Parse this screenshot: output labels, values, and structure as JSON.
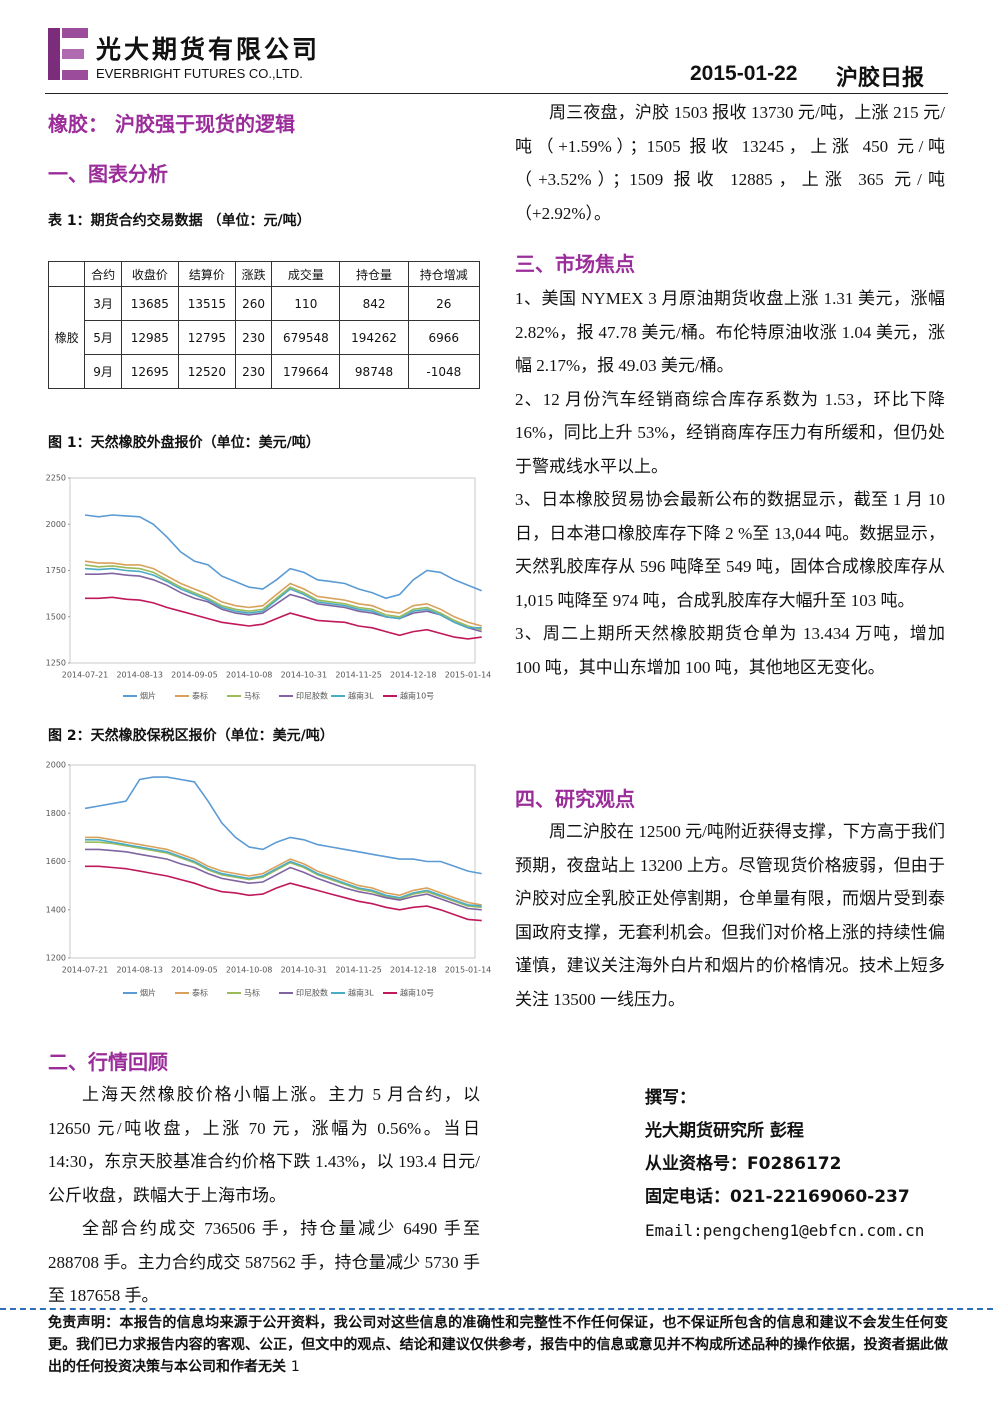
{
  "header": {
    "company": "光大期货有限公司",
    "company_en": "EVERBRIGHT FUTURES CO.,LTD.",
    "date": "2015-01-22",
    "report": "沪胶日报"
  },
  "title": "橡胶： 沪胶强于现货的逻辑",
  "section1": {
    "heading": "一、图表分析",
    "table_caption": "表 1：期货合约交易数据 （单位：元/吨）"
  },
  "table": {
    "header": [
      "合约",
      "收盘价",
      "结算价",
      "涨跌",
      "成交量",
      "持仓量",
      "持仓增减"
    ],
    "group": "橡胶",
    "rows": [
      [
        "3月",
        13685,
        13515,
        260,
        110,
        842,
        26
      ],
      [
        "5月",
        12985,
        12795,
        230,
        679548,
        194262,
        6966
      ],
      [
        "9月",
        12695,
        12520,
        230,
        179664,
        98748,
        -1048
      ]
    ]
  },
  "chart_data": [
    {
      "type": "line",
      "title": "图 1：天然橡胶外盘报价（单位：美元/吨）",
      "grid": false,
      "legend": "bottom",
      "categories": [
        "2014-07-21",
        null,
        null,
        null,
        "2014-08-13",
        null,
        null,
        null,
        "2014-09-05",
        null,
        null,
        null,
        "2014-10-08",
        null,
        null,
        null,
        "2014-10-31",
        null,
        null,
        null,
        "2014-11-25",
        null,
        null,
        null,
        "2014-12-18",
        null,
        null,
        null,
        "2015-01-14",
        null
      ],
      "ylim": [
        1250,
        2250
      ],
      "yticks": [
        1250,
        1500,
        1750,
        2000,
        2250
      ],
      "series": [
        {
          "name": "烟片",
          "color": "#5b9bd5",
          "values": [
            2050,
            2040,
            2050,
            2045,
            2040,
            2000,
            1930,
            1850,
            1800,
            1780,
            1720,
            1690,
            1660,
            1650,
            1700,
            1760,
            1740,
            1700,
            1690,
            1680,
            1650,
            1630,
            1600,
            1620,
            1700,
            1750,
            1740,
            1700,
            1670,
            1640
          ]
        },
        {
          "name": "泰标",
          "color": "#d9a05b",
          "values": [
            1800,
            1790,
            1790,
            1780,
            1780,
            1760,
            1720,
            1680,
            1650,
            1620,
            1580,
            1560,
            1550,
            1560,
            1620,
            1680,
            1650,
            1610,
            1600,
            1590,
            1570,
            1560,
            1530,
            1520,
            1560,
            1570,
            1540,
            1500,
            1470,
            1450
          ]
        },
        {
          "name": "马标",
          "color": "#9bbb59",
          "values": [
            1780,
            1770,
            1775,
            1765,
            1760,
            1740,
            1700,
            1660,
            1630,
            1600,
            1560,
            1540,
            1530,
            1540,
            1600,
            1660,
            1630,
            1590,
            1580,
            1570,
            1550,
            1540,
            1510,
            1500,
            1540,
            1550,
            1520,
            1480,
            1450,
            1430
          ]
        },
        {
          "name": "印尼胶数",
          "color": "#8064a2",
          "values": [
            1730,
            1730,
            1735,
            1725,
            1720,
            1700,
            1670,
            1630,
            1600,
            1580,
            1540,
            1520,
            1510,
            1520,
            1570,
            1620,
            1600,
            1570,
            1560,
            1550,
            1530,
            1520,
            1500,
            1490,
            1520,
            1530,
            1510,
            1470,
            1440,
            1420
          ]
        },
        {
          "name": "越南3L",
          "color": "#4bacc6",
          "values": [
            1760,
            1755,
            1760,
            1750,
            1745,
            1725,
            1690,
            1650,
            1620,
            1590,
            1550,
            1530,
            1520,
            1530,
            1590,
            1650,
            1620,
            1580,
            1570,
            1560,
            1540,
            1530,
            1500,
            1490,
            1530,
            1540,
            1510,
            1470,
            1440,
            1440
          ]
        },
        {
          "name": "越南10号",
          "color": "#c0185a",
          "values": [
            1600,
            1600,
            1605,
            1595,
            1590,
            1575,
            1550,
            1530,
            1510,
            1490,
            1470,
            1460,
            1450,
            1460,
            1490,
            1520,
            1500,
            1480,
            1475,
            1470,
            1450,
            1440,
            1420,
            1400,
            1420,
            1430,
            1410,
            1390,
            1380,
            1390
          ]
        }
      ]
    },
    {
      "type": "line",
      "title": "图 2：天然橡胶保税区报价（单位：美元/吨）",
      "grid": false,
      "legend": "bottom",
      "categories": [
        "2014-07-21",
        null,
        null,
        null,
        "2014-08-13",
        null,
        null,
        null,
        "2014-09-05",
        null,
        null,
        null,
        "2014-10-08",
        null,
        null,
        null,
        "2014-10-31",
        null,
        null,
        null,
        "2014-11-25",
        null,
        null,
        null,
        "2014-12-18",
        null,
        null,
        null,
        "2015-01-14",
        null
      ],
      "ylim": [
        1200,
        2000
      ],
      "yticks": [
        1200,
        1400,
        1600,
        1800,
        2000
      ],
      "series": [
        {
          "name": "烟片",
          "color": "#5b9bd5",
          "values": [
            1820,
            1830,
            1840,
            1850,
            1940,
            1950,
            1950,
            1940,
            1930,
            1850,
            1760,
            1700,
            1660,
            1650,
            1680,
            1700,
            1690,
            1670,
            1660,
            1650,
            1640,
            1630,
            1620,
            1610,
            1610,
            1600,
            1600,
            1580,
            1560,
            1550
          ]
        },
        {
          "name": "泰标",
          "color": "#d9a05b",
          "values": [
            1700,
            1700,
            1690,
            1680,
            1670,
            1660,
            1650,
            1630,
            1610,
            1580,
            1560,
            1550,
            1540,
            1550,
            1580,
            1610,
            1590,
            1560,
            1540,
            1520,
            1500,
            1490,
            1470,
            1460,
            1480,
            1490,
            1470,
            1450,
            1430,
            1420
          ]
        },
        {
          "name": "马标",
          "color": "#9bbb59",
          "values": [
            1680,
            1680,
            1675,
            1665,
            1655,
            1645,
            1635,
            1615,
            1595,
            1565,
            1545,
            1535,
            1525,
            1535,
            1565,
            1595,
            1575,
            1545,
            1525,
            1505,
            1485,
            1475,
            1455,
            1445,
            1465,
            1475,
            1455,
            1435,
            1415,
            1410
          ]
        },
        {
          "name": "印尼胶数",
          "color": "#8064a2",
          "values": [
            1650,
            1650,
            1645,
            1640,
            1630,
            1620,
            1610,
            1590,
            1575,
            1550,
            1530,
            1520,
            1510,
            1515,
            1545,
            1575,
            1555,
            1530,
            1510,
            1490,
            1475,
            1465,
            1450,
            1440,
            1455,
            1465,
            1445,
            1425,
            1405,
            1400
          ]
        },
        {
          "name": "越南3L",
          "color": "#4bacc6",
          "values": [
            1690,
            1690,
            1680,
            1670,
            1660,
            1650,
            1640,
            1620,
            1600,
            1570,
            1550,
            1540,
            1530,
            1540,
            1570,
            1600,
            1580,
            1550,
            1530,
            1510,
            1490,
            1480,
            1460,
            1450,
            1470,
            1480,
            1460,
            1440,
            1420,
            1415
          ]
        },
        {
          "name": "越南10号",
          "color": "#c0185a",
          "values": [
            1580,
            1580,
            1575,
            1570,
            1560,
            1550,
            1540,
            1525,
            1510,
            1490,
            1475,
            1470,
            1460,
            1465,
            1490,
            1510,
            1495,
            1480,
            1465,
            1450,
            1435,
            1425,
            1410,
            1400,
            1410,
            1415,
            1400,
            1380,
            1360,
            1355
          ]
        }
      ]
    }
  ],
  "section2": {
    "heading": "二、行情回顾",
    "paragraphs": [
      "上海天然橡胶价格小幅上涨。主力 5 月合约，以 12650 元/吨收盘，上涨 70 元，涨幅为 0.56%。当日 14:30，东京天胶基准合约价格下跌 1.43%，以 193.4 日元/公斤收盘，跌幅大于上海市场。",
      "全部合约成交 736506 手，持仓量减少 6490 手至 288708 手。主力合约成交 587562 手，持仓量减少 5730 手至 187658 手。"
    ]
  },
  "night_session": "周三夜盘，沪胶 1503 报收 13730 元/吨，上涨 215 元/吨（+1.59%）；1505 报收 13245，上涨 450 元/吨（+3.52%）；1509 报收 12885，上涨 365 元/吨（+2.92%）。",
  "section3": {
    "heading": "三、市场焦点",
    "items": [
      "1、美国 NYMEX 3 月原油期货收盘上涨 1.31 美元，涨幅 2.82%，报 47.78 美元/桶。布伦特原油收涨 1.04 美元，涨幅 2.17%，报 49.03 美元/桶。",
      "2、12 月份汽车经销商综合库存系数为 1.53，环比下降 16%，同比上升 53%，经销商库存压力有所缓和，但仍处于警戒线水平以上。",
      "3、日本橡胶贸易协会最新公布的数据显示，截至 1 月 10 日，日本港口橡胶库存下降 2 %至 13,044 吨。数据显示，天然乳胶库存从 596 吨降至 549 吨，固体合成橡胶库存从 1,015 吨降至 974 吨，合成乳胶库存大幅升至 103 吨。",
      "3、周二上期所天然橡胶期货仓单为 13.434 万吨，增加 100 吨，其中山东增加 100 吨，其他地区无变化。"
    ]
  },
  "section4": {
    "heading": "四、研究观点",
    "paragraph": "周二沪胶在 12500 元/吨附近获得支撑，下方高于我们预期，夜盘站上 13200 上方。尽管现货价格疲弱，但由于沪胶对应全乳胶正处停割期，仓单量有限，而烟片受到泰国政府支撑，无套利机会。但我们对价格上涨的持续性偏谨慎，建议关注海外白片和烟片的价格情况。技术上短多关注 13500 一线压力。"
  },
  "author": {
    "label": "撰写：",
    "org": "光大期货研究所 彭程",
    "license": "从业资格号：F0286172",
    "phone": "固定电话：021-22169060-237",
    "email": "Email:pengcheng1@ebfcn.com.cn"
  },
  "footer": {
    "disclaimer": "免责声明：本报告的信息均来源于公开资料，我公司对这些信息的准确性和完整性不作任何保证，也不保证所包含的信息和建议不会发生任何变更。我们已力求报告内容的客观、公正，但文中的观点、结论和建议仅供参考，报告中的信息或意见并不构成所述品种的操作依据，投资者据此做出的任何投资决策与本公司和作者无关",
    "page": "1"
  }
}
